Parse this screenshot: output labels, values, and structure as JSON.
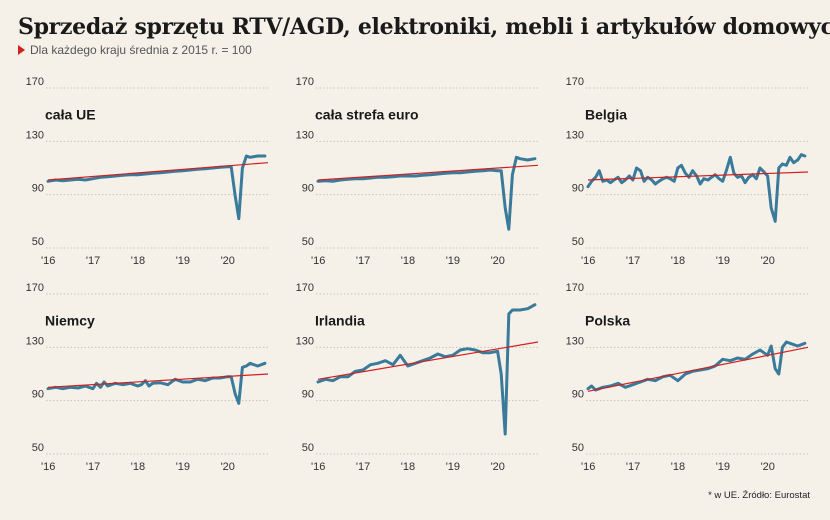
{
  "title": "Sprzedaż sprzętu RTV/AGD, elektroniki, mebli i artykułów domowych*",
  "subtitle": "Dla każdego kraju średnia z 2015 r. = 100",
  "footnote": "* w UE. Źródło: Eurostat",
  "colors": {
    "series": "#3a7a9a",
    "trend": "#d21f1f",
    "grid": "#c8c3b8",
    "background": "#f5f1e8"
  },
  "chart_data": [
    {
      "type": "line",
      "title": "cała UE",
      "x_ticks": [
        "'16",
        "'17",
        "'18",
        "'19",
        "'20"
      ],
      "y_ticks": [
        50,
        90,
        130,
        170
      ],
      "ylim": [
        50,
        170
      ],
      "xlim": [
        2016.0,
        2020.9
      ],
      "x": [
        2016.0,
        2016.17,
        2016.33,
        2016.5,
        2016.67,
        2016.83,
        2017.0,
        2017.17,
        2017.33,
        2017.5,
        2017.67,
        2017.83,
        2018.0,
        2018.17,
        2018.33,
        2018.5,
        2018.67,
        2018.83,
        2019.0,
        2019.17,
        2019.33,
        2019.5,
        2019.67,
        2019.83,
        2020.0,
        2020.08,
        2020.17,
        2020.25,
        2020.33,
        2020.42,
        2020.5,
        2020.67,
        2020.83
      ],
      "values": [
        100,
        101,
        100.5,
        101,
        101.5,
        101,
        102,
        103,
        103.5,
        104,
        104.5,
        105,
        105,
        105.5,
        106,
        106.5,
        107,
        107.5,
        108,
        108.5,
        109,
        109.5,
        110,
        110.5,
        111,
        111,
        89,
        72,
        110,
        119,
        118,
        119,
        119
      ],
      "trend": [
        [
          2016.0,
          101
        ],
        [
          2020.9,
          114
        ]
      ]
    },
    {
      "type": "line",
      "title": "cała strefa euro",
      "x_ticks": [
        "'16",
        "'17",
        "'18",
        "'19",
        "'20"
      ],
      "y_ticks": [
        50,
        90,
        130,
        170
      ],
      "ylim": [
        50,
        170
      ],
      "xlim": [
        2016.0,
        2020.9
      ],
      "x": [
        2016.0,
        2016.17,
        2016.33,
        2016.5,
        2016.67,
        2016.83,
        2017.0,
        2017.17,
        2017.33,
        2017.5,
        2017.67,
        2017.83,
        2018.0,
        2018.17,
        2018.33,
        2018.5,
        2018.67,
        2018.83,
        2019.0,
        2019.17,
        2019.33,
        2019.5,
        2019.67,
        2019.83,
        2020.0,
        2020.08,
        2020.17,
        2020.25,
        2020.33,
        2020.42,
        2020.5,
        2020.67,
        2020.83
      ],
      "values": [
        100,
        100.5,
        100,
        101,
        101.5,
        102,
        102,
        102.5,
        103,
        103,
        103.5,
        104,
        104,
        104,
        104.5,
        105,
        105.5,
        106,
        106.5,
        106.5,
        107,
        107.5,
        108,
        108.5,
        108,
        108,
        80,
        64,
        105,
        118,
        117,
        116,
        117
      ],
      "trend": [
        [
          2016.0,
          101
        ],
        [
          2020.9,
          112
        ]
      ]
    },
    {
      "type": "line",
      "title": "Belgia",
      "x_ticks": [
        "'16",
        "'17",
        "'18",
        "'19",
        "'20"
      ],
      "y_ticks": [
        50,
        90,
        130,
        170
      ],
      "ylim": [
        50,
        170
      ],
      "xlim": [
        2016.0,
        2020.9
      ],
      "x": [
        2016.0,
        2016.08,
        2016.17,
        2016.25,
        2016.33,
        2016.42,
        2016.5,
        2016.58,
        2016.67,
        2016.75,
        2016.83,
        2016.92,
        2017.0,
        2017.08,
        2017.17,
        2017.25,
        2017.33,
        2017.42,
        2017.5,
        2017.58,
        2017.67,
        2017.75,
        2017.83,
        2017.92,
        2018.0,
        2018.08,
        2018.17,
        2018.25,
        2018.33,
        2018.42,
        2018.5,
        2018.58,
        2018.67,
        2018.75,
        2018.83,
        2018.92,
        2019.0,
        2019.08,
        2019.17,
        2019.25,
        2019.33,
        2019.42,
        2019.5,
        2019.58,
        2019.67,
        2019.75,
        2019.83,
        2019.92,
        2020.0,
        2020.08,
        2020.17,
        2020.25,
        2020.33,
        2020.42,
        2020.5,
        2020.58,
        2020.67,
        2020.75,
        2020.83
      ],
      "values": [
        96,
        100,
        103,
        108,
        100,
        101,
        99,
        101,
        103,
        99,
        101,
        104,
        101,
        110,
        108,
        100,
        103,
        101,
        98,
        100,
        102,
        103,
        102,
        100,
        110,
        112,
        106,
        103,
        108,
        104,
        98,
        102,
        101,
        103,
        105,
        102,
        100,
        108,
        118,
        106,
        103,
        104,
        99,
        103,
        105,
        102,
        110,
        107,
        104,
        80,
        70,
        110,
        113,
        112,
        118,
        114,
        116,
        120,
        119
      ],
      "trend": [
        [
          2016.0,
          101
        ],
        [
          2020.9,
          107
        ]
      ]
    },
    {
      "type": "line",
      "title": "Niemcy",
      "x_ticks": [
        "'16",
        "'17",
        "'18",
        "'19",
        "'20"
      ],
      "y_ticks": [
        50,
        90,
        130,
        170
      ],
      "ylim": [
        50,
        170
      ],
      "xlim": [
        2016.0,
        2020.9
      ],
      "x": [
        2016.0,
        2016.17,
        2016.33,
        2016.5,
        2016.67,
        2016.83,
        2017.0,
        2017.08,
        2017.17,
        2017.25,
        2017.33,
        2017.5,
        2017.67,
        2017.83,
        2018.0,
        2018.08,
        2018.17,
        2018.25,
        2018.33,
        2018.5,
        2018.67,
        2018.83,
        2019.0,
        2019.17,
        2019.33,
        2019.5,
        2019.67,
        2019.83,
        2020.0,
        2020.08,
        2020.17,
        2020.25,
        2020.33,
        2020.42,
        2020.5,
        2020.67,
        2020.83
      ],
      "values": [
        99,
        100,
        99,
        100,
        99.5,
        101,
        99,
        103,
        100,
        104,
        101,
        103,
        102,
        103,
        101,
        102,
        105,
        101,
        103,
        103.5,
        102,
        106,
        104,
        104,
        106,
        105,
        107,
        107,
        108,
        108,
        95,
        88,
        115,
        116,
        118,
        116,
        118
      ],
      "trend": [
        [
          2016.0,
          100
        ],
        [
          2020.9,
          110
        ]
      ]
    },
    {
      "type": "line",
      "title": "Irlandia",
      "x_ticks": [
        "'16",
        "'17",
        "'18",
        "'19",
        "'20"
      ],
      "y_ticks": [
        50,
        90,
        130,
        170
      ],
      "ylim": [
        50,
        170
      ],
      "xlim": [
        2016.0,
        2020.9
      ],
      "x": [
        2016.0,
        2016.17,
        2016.33,
        2016.5,
        2016.67,
        2016.83,
        2017.0,
        2017.17,
        2017.33,
        2017.5,
        2017.67,
        2017.83,
        2018.0,
        2018.17,
        2018.33,
        2018.5,
        2018.67,
        2018.83,
        2019.0,
        2019.17,
        2019.33,
        2019.5,
        2019.67,
        2019.83,
        2020.0,
        2020.08,
        2020.17,
        2020.25,
        2020.33,
        2020.42,
        2020.5,
        2020.67,
        2020.83
      ],
      "values": [
        104,
        106,
        105,
        108,
        108,
        112,
        113,
        117,
        118,
        120,
        117,
        124,
        116,
        118,
        120,
        122,
        125,
        123,
        124,
        128,
        129,
        128,
        126,
        126,
        127,
        110,
        65,
        155,
        158,
        158,
        158,
        159,
        162
      ],
      "trend": [
        [
          2016.0,
          106
        ],
        [
          2020.9,
          134
        ]
      ]
    },
    {
      "type": "line",
      "title": "Polska",
      "x_ticks": [
        "'16",
        "'17",
        "'18",
        "'19",
        "'20"
      ],
      "y_ticks": [
        50,
        90,
        130,
        170
      ],
      "ylim": [
        50,
        170
      ],
      "xlim": [
        2016.0,
        2020.9
      ],
      "x": [
        2016.0,
        2016.08,
        2016.17,
        2016.25,
        2016.33,
        2016.5,
        2016.67,
        2016.83,
        2017.0,
        2017.17,
        2017.33,
        2017.5,
        2017.67,
        2017.83,
        2018.0,
        2018.17,
        2018.33,
        2018.5,
        2018.67,
        2018.83,
        2019.0,
        2019.17,
        2019.33,
        2019.5,
        2019.67,
        2019.83,
        2020.0,
        2020.08,
        2020.17,
        2020.25,
        2020.33,
        2020.42,
        2020.5,
        2020.67,
        2020.83
      ],
      "values": [
        99,
        101,
        98,
        99,
        100,
        101,
        103,
        100,
        102,
        104,
        106,
        105,
        108,
        109,
        105,
        110,
        112,
        113,
        114,
        116,
        121,
        120,
        122,
        121,
        125,
        128,
        124,
        131,
        114,
        110,
        130,
        134,
        133,
        131,
        133
      ],
      "trend": [
        [
          2016.0,
          97
        ],
        [
          2020.9,
          130
        ]
      ]
    }
  ]
}
